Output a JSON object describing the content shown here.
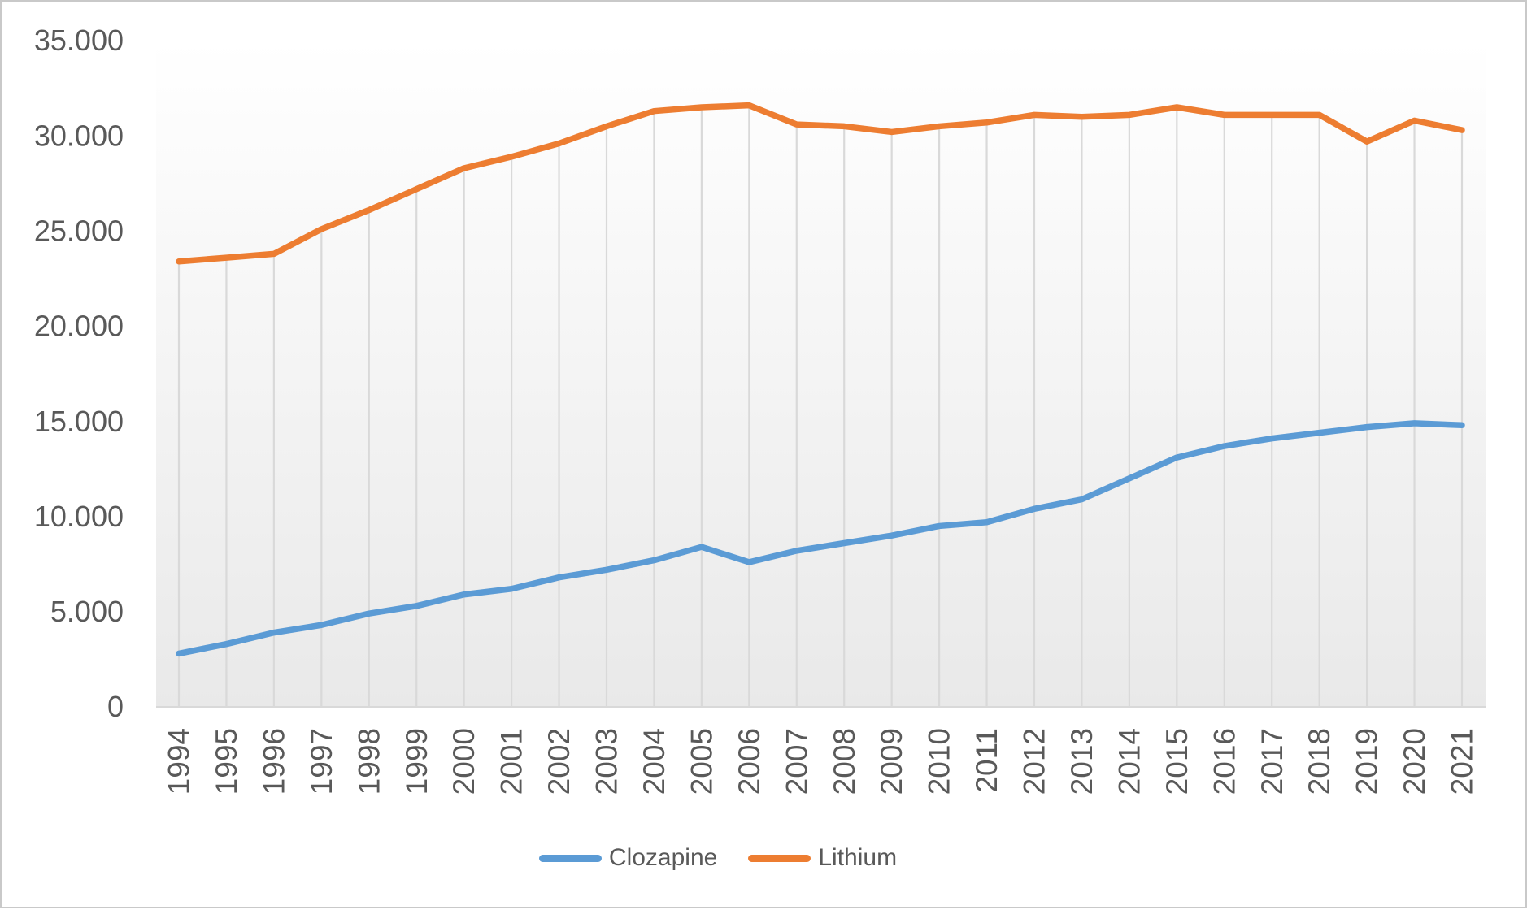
{
  "chart_data": {
    "type": "line",
    "title": "",
    "categories": [
      "1994",
      "1995",
      "1996",
      "1997",
      "1998",
      "1999",
      "2000",
      "2001",
      "2002",
      "2003",
      "2004",
      "2005",
      "2006",
      "2007",
      "2008",
      "2009",
      "2010",
      "2011",
      "2012",
      "2013",
      "2014",
      "2015",
      "2016",
      "2017",
      "2018",
      "2019",
      "2020",
      "2021"
    ],
    "series": [
      {
        "name": "Clozapine",
        "color": "#5B9BD5",
        "values": [
          2800,
          3300,
          3900,
          4300,
          4900,
          5300,
          5900,
          6200,
          6800,
          7200,
          7700,
          8400,
          7600,
          8200,
          8600,
          9000,
          9500,
          9700,
          10400,
          10900,
          12000,
          13100,
          13700,
          14100,
          14400,
          14700,
          14900,
          14800
        ]
      },
      {
        "name": "Lithium",
        "color": "#ED7D31",
        "values": [
          23400,
          23600,
          23800,
          25100,
          26100,
          27200,
          28300,
          28900,
          29600,
          30500,
          31300,
          31500,
          31600,
          30600,
          30500,
          30200,
          30500,
          30700,
          31100,
          31000,
          31100,
          31500,
          31100,
          31100,
          31100,
          29700,
          30800,
          30300
        ]
      }
    ],
    "ylim": [
      0,
      35000
    ],
    "ytick_step": 5000,
    "y_tick_labels": [
      "0",
      "5.000",
      "10.000",
      "15.000",
      "20.000",
      "25.000",
      "30.000",
      "35.000"
    ],
    "grid": "vertical-drop-lines",
    "legend_position": "bottom",
    "style": {
      "text_color": "#595959",
      "dropline_color": "#d9d9d9",
      "plot_border_color": "#d9d9d9",
      "plot_bg_top": "#ffffff",
      "plot_bg_bottom": "#e9e9e9"
    }
  }
}
